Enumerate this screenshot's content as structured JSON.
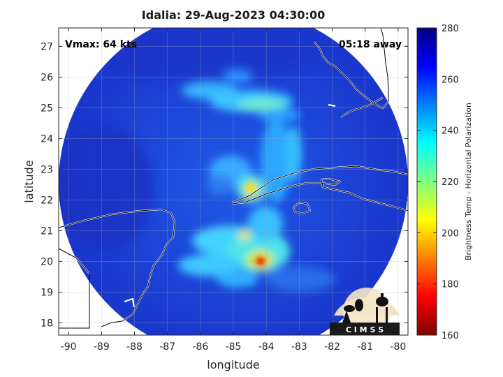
{
  "title": "Idalia: 29-Aug-2023 04:30:00",
  "vmax_label": "Vmax: 64 kts",
  "away_label": "05:18 away",
  "logo_text": "C I M S S",
  "xaxis": {
    "label": "longitude",
    "ticks": [
      "-90",
      "-89",
      "-88",
      "-87",
      "-86",
      "-85",
      "-84",
      "-83",
      "-82",
      "-81",
      "-80"
    ]
  },
  "yaxis": {
    "label": "latitude",
    "ticks": [
      "18",
      "19",
      "20",
      "21",
      "22",
      "23",
      "24",
      "25",
      "26",
      "27"
    ]
  },
  "colorbar": {
    "label": "Brightness Temp - Horizontal Polarization",
    "ticks": [
      "160",
      "180",
      "200",
      "220",
      "240",
      "260",
      "280"
    ],
    "min": 160,
    "max": 280,
    "colors": [
      "#7f0000",
      "#ff0000",
      "#ff8000",
      "#ffff00",
      "#80ff80",
      "#00ffff",
      "#0080ff",
      "#0000ff",
      "#00007f"
    ]
  },
  "map": {
    "lon_range": [
      -90.3,
      -79.7
    ],
    "lat_range": [
      17.6,
      27.6
    ],
    "swath_center": [
      -85.0,
      22.6
    ],
    "swath_radius_deg": 5.1,
    "background_color": "#1e3cd8"
  }
}
